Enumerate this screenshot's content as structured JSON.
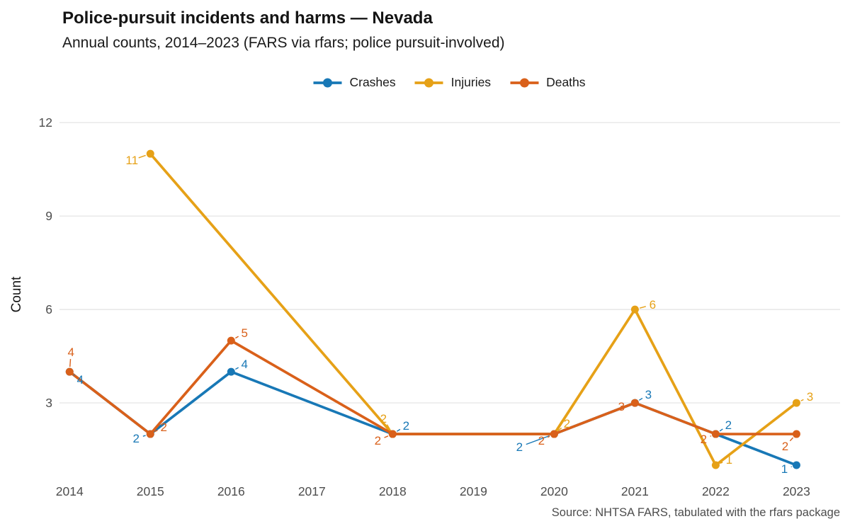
{
  "header": {
    "title": "Police-pursuit incidents and harms — Nevada",
    "subtitle": "Annual counts, 2014–2023 (FARS via rfars; police pursuit-involved)"
  },
  "caption": "Source: NHTSA FARS, tabulated with the rfars package",
  "colors": {
    "crashes": "#1878b6",
    "injuries": "#e6a117",
    "deaths": "#d9601a",
    "grid": "#e7e7e7",
    "tick_text": "#4d4d4d",
    "heading_text": "#141414"
  },
  "chart_data": {
    "type": "line",
    "title": "Police-pursuit incidents and harms — Nevada",
    "subtitle": "Annual counts, 2014–2023 (FARS via rfars; police pursuit-involved)",
    "xlabel": "",
    "ylabel": "Count",
    "x_ticks": [
      2014,
      2015,
      2016,
      2017,
      2018,
      2019,
      2020,
      2021,
      2022,
      2023
    ],
    "y_ticks": [
      3,
      6,
      9,
      12
    ],
    "xlim": [
      2013.84,
      2023.54
    ],
    "ylim": [
      0.66,
      12.3
    ],
    "grid": "horizontal-major-only",
    "legend_position": "top-center",
    "data_labels": true,
    "series": [
      {
        "name": "Crashes",
        "color": "#1878b6",
        "points": [
          [
            2014,
            4
          ],
          [
            2015,
            2
          ],
          [
            2016,
            4
          ],
          [
            2018,
            2
          ],
          [
            2020,
            2
          ],
          [
            2021,
            3
          ],
          [
            2022,
            2
          ],
          [
            2023,
            1
          ]
        ]
      },
      {
        "name": "Injuries",
        "color": "#e6a117",
        "points": [
          [
            2015,
            11
          ],
          [
            2018,
            2
          ],
          [
            2020,
            2
          ],
          [
            2021,
            6
          ],
          [
            2022,
            1
          ],
          [
            2023,
            3
          ]
        ]
      },
      {
        "name": "Deaths",
        "color": "#d9601a",
        "points": [
          [
            2014,
            4
          ],
          [
            2015,
            2
          ],
          [
            2016,
            5
          ],
          [
            2018,
            2
          ],
          [
            2020,
            2
          ],
          [
            2021,
            3
          ],
          [
            2022,
            2
          ],
          [
            2023,
            2
          ]
        ]
      }
    ]
  }
}
